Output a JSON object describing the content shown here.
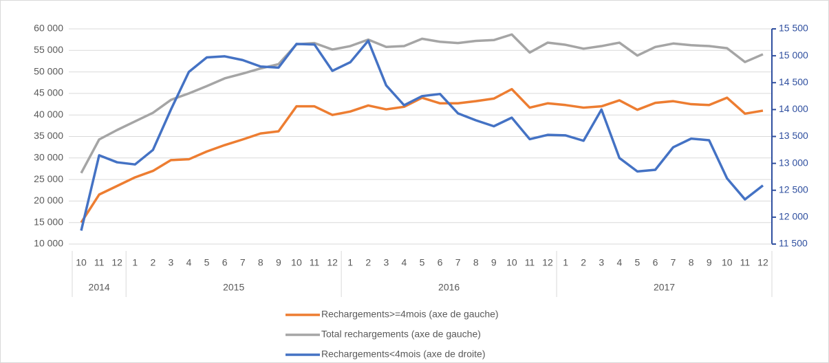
{
  "chart_data": {
    "type": "line",
    "categories": [
      "10",
      "11",
      "12",
      "1",
      "2",
      "3",
      "4",
      "5",
      "6",
      "7",
      "8",
      "9",
      "10",
      "11",
      "12",
      "1",
      "2",
      "3",
      "4",
      "5",
      "6",
      "7",
      "8",
      "9",
      "10",
      "11",
      "12",
      "1",
      "2",
      "3",
      "4",
      "5",
      "6",
      "7",
      "8",
      "9",
      "10",
      "11",
      "12"
    ],
    "years": [
      "2014",
      "2015",
      "2016",
      "2017"
    ],
    "series": [
      {
        "name": "Rechargements>=4mois (axe de gauche)",
        "color": "#ed7d31",
        "axis": "y",
        "values": [
          15000,
          21500,
          23500,
          25500,
          27000,
          29500,
          29700,
          31500,
          33000,
          34300,
          35700,
          36200,
          42000,
          42000,
          40000,
          40800,
          42200,
          41300,
          41900,
          44000,
          42700,
          42700,
          43200,
          43800,
          46000,
          41700,
          42700,
          42300,
          41700,
          42000,
          43400,
          41200,
          42800,
          43200,
          42500,
          42300,
          44000,
          40300,
          41000
        ]
      },
      {
        "name": "Total rechargements (axe de gauche)",
        "color": "#a5a5a5",
        "axis": "y",
        "values": [
          26500,
          34300,
          36500,
          38500,
          40500,
          43500,
          45000,
          46700,
          48500,
          49600,
          50800,
          51800,
          56400,
          56700,
          55200,
          56000,
          57500,
          55800,
          56000,
          57700,
          57000,
          56700,
          57200,
          57400,
          58700,
          54500,
          56800,
          56300,
          55400,
          56000,
          56800,
          53800,
          55800,
          56600,
          56200,
          56000,
          55500,
          52300,
          54100
        ]
      },
      {
        "name": "Rechargements<4mois (axe de droite)",
        "color": "#4472c4",
        "axis": "y2",
        "values": [
          11750,
          13150,
          13020,
          12980,
          13250,
          14000,
          14700,
          14970,
          14990,
          14920,
          14800,
          14780,
          15220,
          15210,
          14720,
          14880,
          15280,
          14450,
          14080,
          14250,
          14290,
          13930,
          13800,
          13690,
          13850,
          13450,
          13530,
          13520,
          13420,
          14000,
          13100,
          12850,
          12880,
          13300,
          13460,
          13430,
          12720,
          12330,
          12590
        ]
      }
    ],
    "ylim": [
      10000,
      60000
    ],
    "yticks": [
      {
        "value": 10000,
        "label": "10 000"
      },
      {
        "value": 15000,
        "label": "15 000"
      },
      {
        "value": 20000,
        "label": "20 000"
      },
      {
        "value": 25000,
        "label": "25 000"
      },
      {
        "value": 30000,
        "label": "30 000"
      },
      {
        "value": 35000,
        "label": "35 000"
      },
      {
        "value": 40000,
        "label": "40 000"
      },
      {
        "value": 45000,
        "label": "45 000"
      },
      {
        "value": 50000,
        "label": "50 000"
      },
      {
        "value": 55000,
        "label": "55 000"
      },
      {
        "value": 60000,
        "label": "60 000"
      }
    ],
    "y2lim": [
      11500,
      15500
    ],
    "y2ticks": [
      {
        "value": 11500,
        "label": "11 500"
      },
      {
        "value": 12000,
        "label": "12 000"
      },
      {
        "value": 12500,
        "label": "12 500"
      },
      {
        "value": 13000,
        "label": "13 000"
      },
      {
        "value": 13500,
        "label": "13 500"
      },
      {
        "value": 14000,
        "label": "14 000"
      },
      {
        "value": 14500,
        "label": "14 500"
      },
      {
        "value": 15000,
        "label": "15 000"
      },
      {
        "value": 15500,
        "label": "15 500"
      }
    ],
    "grid": true
  }
}
